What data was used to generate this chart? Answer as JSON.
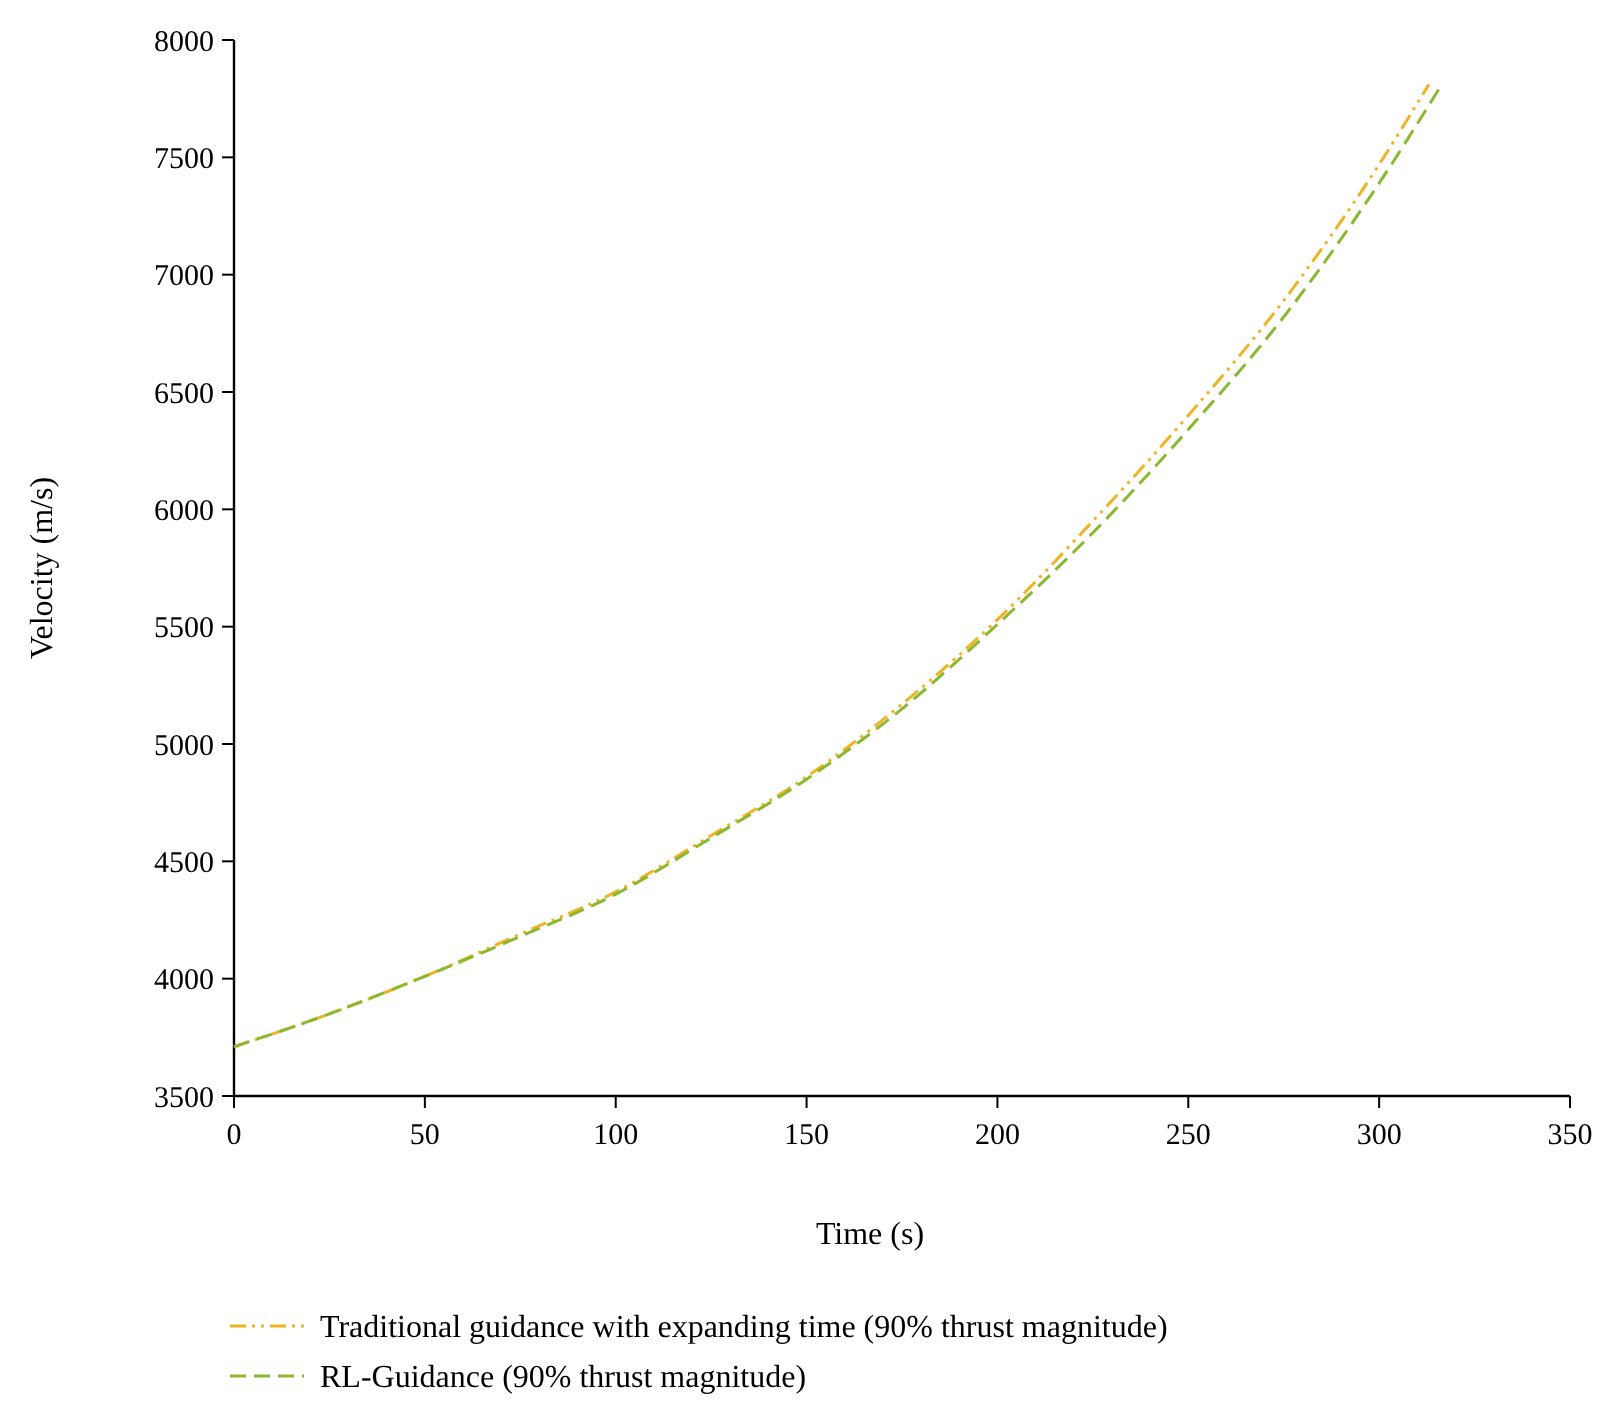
{
  "chart_data": {
    "type": "line",
    "xlabel": "Time (s)",
    "ylabel": "Velocity (m/s)",
    "xlim": [
      0,
      350
    ],
    "ylim": [
      3500,
      8000
    ],
    "xticks": [
      0,
      50,
      100,
      150,
      200,
      250,
      300,
      350
    ],
    "yticks": [
      3500,
      4000,
      4500,
      5000,
      5500,
      6000,
      6500,
      7000,
      7500,
      8000
    ],
    "grid": false,
    "legend": "bottom",
    "series": [
      {
        "name": "Traditional guidance with expanding time (90% thrust magnitude)",
        "color": "#f0b323",
        "line_style": "dotted",
        "x": [
          0,
          25,
          50,
          75,
          100,
          125,
          150,
          175,
          200,
          225,
          250,
          275,
          300,
          313
        ],
        "values": [
          3710,
          3850,
          4010,
          4190,
          4370,
          4610,
          4860,
          5170,
          5530,
          5950,
          6400,
          6890,
          7470,
          7810
        ]
      },
      {
        "name": "RL-Guidance (90% thrust magnitude)",
        "color": "#8ab82e",
        "line_style": "dashed",
        "x": [
          0,
          25,
          50,
          75,
          100,
          125,
          150,
          175,
          200,
          225,
          250,
          275,
          300,
          316
        ],
        "values": [
          3710,
          3850,
          4010,
          4180,
          4360,
          4600,
          4850,
          5150,
          5510,
          5900,
          6340,
          6820,
          7390,
          7800
        ]
      }
    ]
  }
}
